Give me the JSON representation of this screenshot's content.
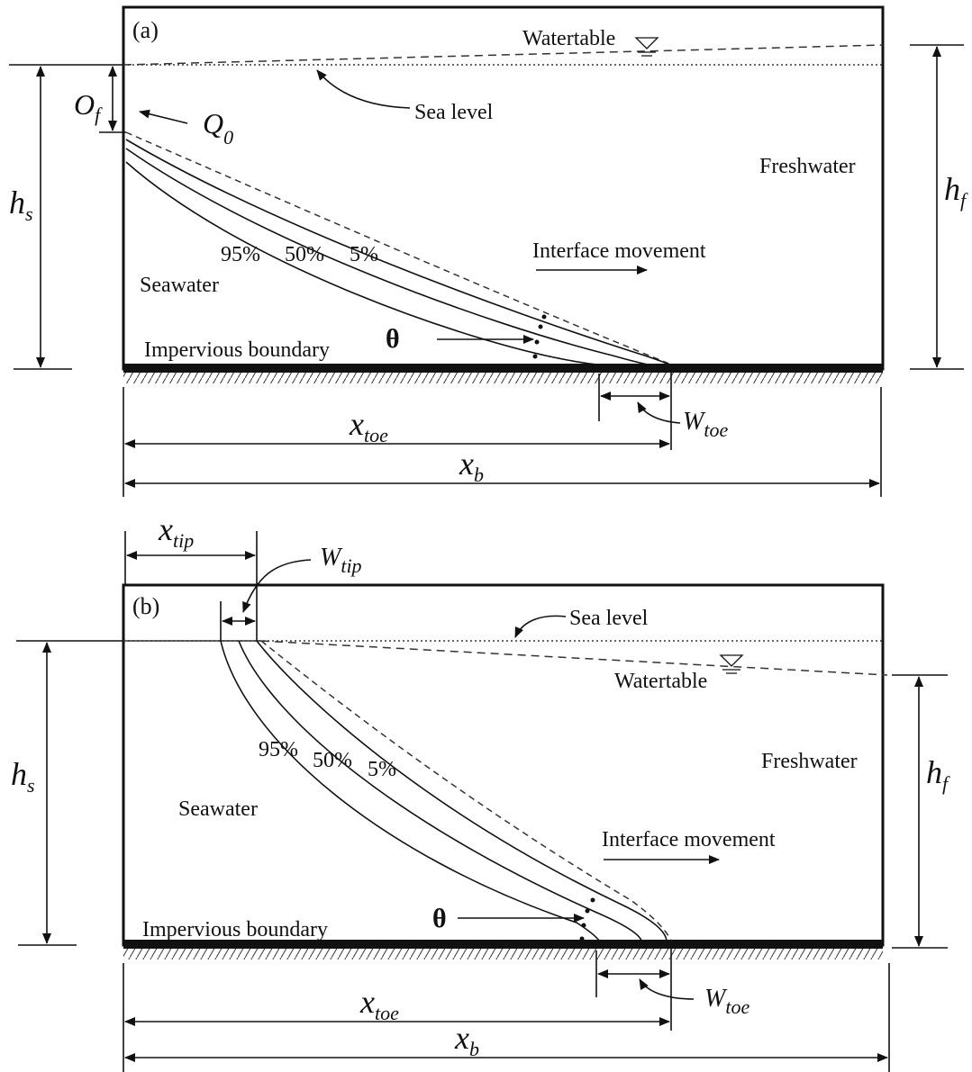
{
  "panels": [
    {
      "tag": "(a)",
      "watertable": "Watertable",
      "sea_level": "Sea level",
      "overheight": {
        "base": "O",
        "sub": "f"
      },
      "discharge": {
        "base": "Q",
        "sub": "0"
      },
      "hs": {
        "base": "h",
        "sub": "s"
      },
      "hf": {
        "base": "h",
        "sub": "f"
      },
      "freshwater": "Freshwater",
      "seawater": "Seawater",
      "contours": [
        "95%",
        "50%",
        "5%"
      ],
      "movement": "Interface movement",
      "boundary": "Impervious boundary",
      "theta": "θ",
      "xtoe": {
        "base": "x",
        "sub": "toe"
      },
      "wtoe": {
        "base": "W",
        "sub": "toe"
      },
      "xb": {
        "base": "x",
        "sub": "b"
      }
    },
    {
      "tag": "(b)",
      "xtip": {
        "base": "x",
        "sub": "tip"
      },
      "wtip": {
        "base": "W",
        "sub": "tip"
      },
      "sea_level": "Sea level",
      "watertable": "Watertable",
      "hs": {
        "base": "h",
        "sub": "s"
      },
      "hf": {
        "base": "h",
        "sub": "f"
      },
      "freshwater": "Freshwater",
      "seawater": "Seawater",
      "contours": [
        "95%",
        "50%",
        "5%"
      ],
      "movement": "Interface movement",
      "boundary": "Impervious boundary",
      "theta": "θ",
      "xtoe": {
        "base": "x",
        "sub": "toe"
      },
      "wtoe": {
        "base": "W",
        "sub": "toe"
      },
      "xb": {
        "base": "x",
        "sub": "b"
      }
    }
  ]
}
